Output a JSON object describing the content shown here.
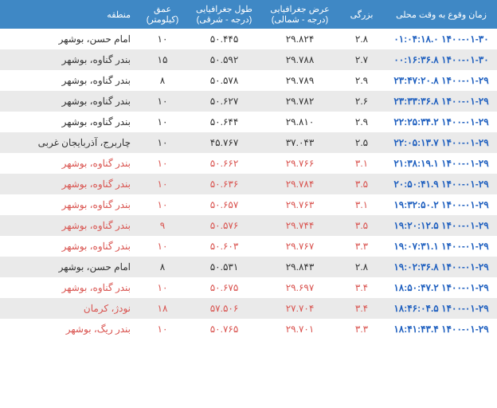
{
  "headers": {
    "time": "زمان وقوع به وقت محلی",
    "magnitude": "بزرگی",
    "latitude": "عرض جغرافیایی (درجه - شمالی)",
    "longitude": "طول جغرافیایی (درجه - شرقی)",
    "depth": "عمق (کیلومتر)",
    "region": "منطقه"
  },
  "colors": {
    "header_bg": "#3f88c5",
    "header_fg": "#ffffff",
    "time_fg": "#1e5fbf",
    "low_fg": "#333333",
    "high_fg": "#d9534f",
    "row_odd": "#ffffff",
    "row_even": "#eaeaea"
  },
  "rows": [
    {
      "time": "۱۴۰۰-۰۱-۳۰ ۰۱:۰۴:۱۸.۰",
      "mag": "۲.۸",
      "lat": "۲۹.۸۲۴",
      "lon": "۵۰.۴۴۵",
      "depth": "۱۰",
      "region": "امام حسن، بوشهر",
      "high": false
    },
    {
      "time": "۱۴۰۰-۰۱-۳۰ ۰۰:۱۶:۳۶.۸",
      "mag": "۲.۷",
      "lat": "۲۹.۷۸۸",
      "lon": "۵۰.۵۹۲",
      "depth": "۱۵",
      "region": "بندر گناوه، بوشهر",
      "high": false
    },
    {
      "time": "۱۴۰۰-۰۱-۲۹ ۲۳:۴۷:۲۰.۸",
      "mag": "۲.۹",
      "lat": "۲۹.۷۸۹",
      "lon": "۵۰.۵۷۸",
      "depth": "۸",
      "region": "بندر گناوه، بوشهر",
      "high": false
    },
    {
      "time": "۱۴۰۰-۰۱-۲۹ ۲۳:۳۳:۳۶.۸",
      "mag": "۲.۶",
      "lat": "۲۹.۷۸۲",
      "lon": "۵۰.۶۲۷",
      "depth": "۱۰",
      "region": "بندر گناوه، بوشهر",
      "high": false
    },
    {
      "time": "۱۴۰۰-۰۱-۲۹ ۲۲:۲۵:۳۴.۲",
      "mag": "۲.۹",
      "lat": "۲۹.۸۱۰",
      "lon": "۵۰.۶۴۴",
      "depth": "۱۰",
      "region": "بندر گناوه، بوشهر",
      "high": false
    },
    {
      "time": "۱۴۰۰-۰۱-۲۹ ۲۲:۰۵:۱۳.۷",
      "mag": "۲.۵",
      "lat": "۳۷.۰۴۳",
      "lon": "۴۵.۷۶۷",
      "depth": "۱۰",
      "region": "چاربرج، آذربایجان غربی",
      "high": false
    },
    {
      "time": "۱۴۰۰-۰۱-۲۹ ۲۱:۳۸:۱۹.۱",
      "mag": "۳.۱",
      "lat": "۲۹.۷۶۶",
      "lon": "۵۰.۶۶۲",
      "depth": "۱۰",
      "region": "بندر گناوه، بوشهر",
      "high": true
    },
    {
      "time": "۱۴۰۰-۰۱-۲۹ ۲۰:۵۰:۴۱.۹",
      "mag": "۳.۵",
      "lat": "۲۹.۷۸۴",
      "lon": "۵۰.۶۳۶",
      "depth": "۱۰",
      "region": "بندر گناوه، بوشهر",
      "high": true
    },
    {
      "time": "۱۴۰۰-۰۱-۲۹ ۱۹:۳۲:۵۰.۲",
      "mag": "۳.۱",
      "lat": "۲۹.۷۶۳",
      "lon": "۵۰.۶۵۷",
      "depth": "۱۰",
      "region": "بندر گناوه، بوشهر",
      "high": true
    },
    {
      "time": "۱۴۰۰-۰۱-۲۹ ۱۹:۲۰:۱۲.۵",
      "mag": "۳.۵",
      "lat": "۲۹.۷۴۴",
      "lon": "۵۰.۵۷۶",
      "depth": "۹",
      "region": "بندر گناوه، بوشهر",
      "high": true
    },
    {
      "time": "۱۴۰۰-۰۱-۲۹ ۱۹:۰۷:۳۱.۱",
      "mag": "۳.۳",
      "lat": "۲۹.۷۶۷",
      "lon": "۵۰.۶۰۳",
      "depth": "۱۰",
      "region": "بندر گناوه، بوشهر",
      "high": true
    },
    {
      "time": "۱۴۰۰-۰۱-۲۹ ۱۹:۰۲:۳۶.۸",
      "mag": "۲.۸",
      "lat": "۲۹.۸۴۳",
      "lon": "۵۰.۵۳۱",
      "depth": "۸",
      "region": "امام حسن، بوشهر",
      "high": false
    },
    {
      "time": "۱۴۰۰-۰۱-۲۹ ۱۸:۵۰:۴۷.۲",
      "mag": "۳.۴",
      "lat": "۲۹.۶۹۷",
      "lon": "۵۰.۶۷۵",
      "depth": "۱۰",
      "region": "بندر گناوه، بوشهر",
      "high": true
    },
    {
      "time": "۱۴۰۰-۰۱-۲۹ ۱۸:۴۶:۰۴.۵",
      "mag": "۳.۴",
      "lat": "۲۷.۷۰۴",
      "lon": "۵۷.۵۰۶",
      "depth": "۱۸",
      "region": "نودژ، کرمان",
      "high": true
    },
    {
      "time": "۱۴۰۰-۰۱-۲۹ ۱۸:۴۱:۴۳.۴",
      "mag": "۳.۳",
      "lat": "۲۹.۷۰۱",
      "lon": "۵۰.۷۶۵",
      "depth": "۱۰",
      "region": "بندر ریگ، بوشهر",
      "high": true
    }
  ]
}
